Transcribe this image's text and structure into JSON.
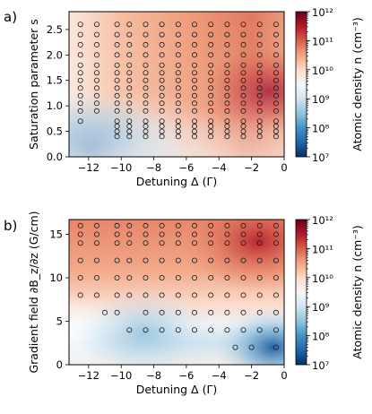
{
  "chart_data": [
    {
      "panel_label": "a)",
      "type": "heatmap",
      "xlabel": "Detuning Δ (Γ)",
      "ylabel": "Saturation parameter s",
      "xlim": [
        -13.2,
        0
      ],
      "ylim": [
        0,
        2.85
      ],
      "xticks": [
        -12,
        -10,
        -8,
        -6,
        -4,
        -2,
        0
      ],
      "yticks": [
        0.0,
        0.5,
        1.0,
        1.5,
        2.0,
        2.5
      ],
      "ytick_labels": [
        "0.0",
        "0.5",
        "1.0",
        "1.5",
        "2.0",
        "2.5"
      ],
      "colorbar": {
        "label": "Atomic density n (cm⁻³)",
        "scale": "log",
        "range": [
          10000000.0,
          1000000000000.0
        ],
        "tick_labels": [
          "10⁷",
          "10⁸",
          "10⁹",
          "10¹⁰",
          "10¹¹",
          "10¹²"
        ],
        "colormap": "RdBu_r"
      },
      "samples": {
        "columns": [
          {
            "x": -12.5,
            "y": [
              0.7,
              0.9,
              1.05,
              1.2,
              1.35,
              1.5,
              1.65,
              1.8,
              2.0,
              2.2,
              2.4,
              2.6
            ]
          },
          {
            "x": -11.5,
            "y": [
              0.9,
              1.05,
              1.2,
              1.35,
              1.5,
              1.65,
              1.8,
              2.0,
              2.2,
              2.4,
              2.6
            ]
          },
          {
            "x": -10.25,
            "y": [
              0.4,
              0.5,
              0.6,
              0.7,
              0.9,
              1.05,
              1.2,
              1.35,
              1.5,
              1.65,
              1.8,
              2.0,
              2.2,
              2.4,
              2.6
            ]
          },
          {
            "x": -9.5,
            "y": [
              0.4,
              0.5,
              0.6,
              0.7,
              0.9,
              1.05,
              1.2,
              1.35,
              1.5,
              1.65,
              1.8,
              2.0,
              2.2,
              2.4,
              2.6
            ]
          },
          {
            "x": -8.5,
            "y": [
              0.4,
              0.5,
              0.6,
              0.7,
              0.9,
              1.05,
              1.2,
              1.35,
              1.5,
              1.65,
              1.8,
              2.0,
              2.2,
              2.4,
              2.6
            ]
          },
          {
            "x": -7.5,
            "y": [
              0.4,
              0.5,
              0.6,
              0.7,
              0.9,
              1.05,
              1.2,
              1.35,
              1.5,
              1.65,
              1.8,
              2.0,
              2.2,
              2.4,
              2.6
            ]
          },
          {
            "x": -6.5,
            "y": [
              0.4,
              0.5,
              0.6,
              0.7,
              0.9,
              1.05,
              1.2,
              1.35,
              1.5,
              1.65,
              1.8,
              2.0,
              2.2,
              2.4,
              2.6
            ]
          },
          {
            "x": -5.5,
            "y": [
              0.4,
              0.5,
              0.6,
              0.7,
              0.9,
              1.05,
              1.2,
              1.35,
              1.5,
              1.65,
              1.8,
              2.0,
              2.2,
              2.4,
              2.6
            ]
          },
          {
            "x": -4.5,
            "y": [
              0.4,
              0.5,
              0.6,
              0.7,
              0.9,
              1.05,
              1.2,
              1.35,
              1.5,
              1.65,
              1.8,
              2.0,
              2.2,
              2.4,
              2.6
            ]
          },
          {
            "x": -3.5,
            "y": [
              0.4,
              0.5,
              0.6,
              0.7,
              0.9,
              1.05,
              1.2,
              1.35,
              1.5,
              1.65,
              1.8,
              2.0,
              2.2,
              2.4,
              2.6
            ]
          },
          {
            "x": -2.5,
            "y": [
              0.4,
              0.5,
              0.6,
              0.7,
              0.9,
              1.05,
              1.2,
              1.35,
              1.5,
              1.65,
              1.8,
              2.0,
              2.2,
              2.4,
              2.6
            ]
          },
          {
            "x": -1.5,
            "y": [
              0.4,
              0.5,
              0.6,
              0.7,
              0.9,
              1.05,
              1.2,
              1.35,
              1.5,
              1.65,
              1.8,
              2.0,
              2.2,
              2.4,
              2.6
            ]
          },
          {
            "x": -0.5,
            "y": [
              0.4,
              0.5,
              0.6,
              0.7,
              0.9,
              1.05,
              1.2,
              1.35,
              1.5,
              1.65,
              1.8,
              2.0,
              2.2,
              2.4,
              2.6
            ]
          }
        ]
      }
    },
    {
      "panel_label": "b)",
      "type": "heatmap",
      "xlabel": "Detuning Δ (Γ)",
      "ylabel": "Gradient field ∂B_z/∂z (G/cm)",
      "xlim": [
        -13.2,
        0
      ],
      "ylim": [
        0,
        16.7
      ],
      "xticks": [
        -12,
        -10,
        -8,
        -6,
        -4,
        -2,
        0
      ],
      "yticks": [
        0,
        5,
        10,
        15
      ],
      "ytick_labels": [
        "0",
        "5",
        "10",
        "15"
      ],
      "colorbar": {
        "label": "Atomic density n (cm⁻³)",
        "scale": "log",
        "range": [
          10000000.0,
          1000000000000.0
        ],
        "tick_labels": [
          "10⁷",
          "10⁸",
          "10⁹",
          "10¹⁰",
          "10¹¹",
          "10¹²"
        ],
        "colormap": "RdBu_r"
      },
      "samples": {
        "columns": [
          {
            "x": -12.5,
            "y": [
              8,
              10,
              12,
              14,
              15,
              16
            ]
          },
          {
            "x": -11.5,
            "y": [
              8,
              10,
              12,
              14,
              15,
              16
            ]
          },
          {
            "x": -11,
            "y": [
              6
            ]
          },
          {
            "x": -10.25,
            "y": [
              6,
              8,
              10,
              12,
              14,
              15,
              16
            ]
          },
          {
            "x": -9.5,
            "y": [
              4,
              8,
              10,
              12,
              14,
              15,
              16
            ]
          },
          {
            "x": -8.5,
            "y": [
              4,
              6,
              8,
              10,
              12,
              14,
              15,
              16
            ]
          },
          {
            "x": -7.5,
            "y": [
              4,
              6,
              8,
              10,
              12,
              14,
              15,
              16
            ]
          },
          {
            "x": -6.5,
            "y": [
              4,
              6,
              8,
              10,
              12,
              14,
              15,
              16
            ]
          },
          {
            "x": -5.5,
            "y": [
              4,
              6,
              8,
              10,
              12,
              14,
              15,
              16
            ]
          },
          {
            "x": -4.5,
            "y": [
              4,
              6,
              8,
              10,
              12,
              14,
              15,
              16
            ]
          },
          {
            "x": -3.5,
            "y": [
              4,
              6,
              8,
              10,
              12,
              14,
              15,
              16
            ]
          },
          {
            "x": -3,
            "y": [
              2
            ]
          },
          {
            "x": -2.5,
            "y": [
              4,
              6,
              8,
              10,
              12,
              14,
              15,
              16
            ]
          },
          {
            "x": -2,
            "y": [
              2
            ]
          },
          {
            "x": -1.5,
            "y": [
              4,
              6,
              8,
              10,
              12,
              14,
              15,
              16
            ]
          },
          {
            "x": -0.5,
            "y": [
              2,
              4,
              6,
              8,
              10,
              12,
              14,
              15,
              16
            ]
          }
        ]
      }
    }
  ]
}
